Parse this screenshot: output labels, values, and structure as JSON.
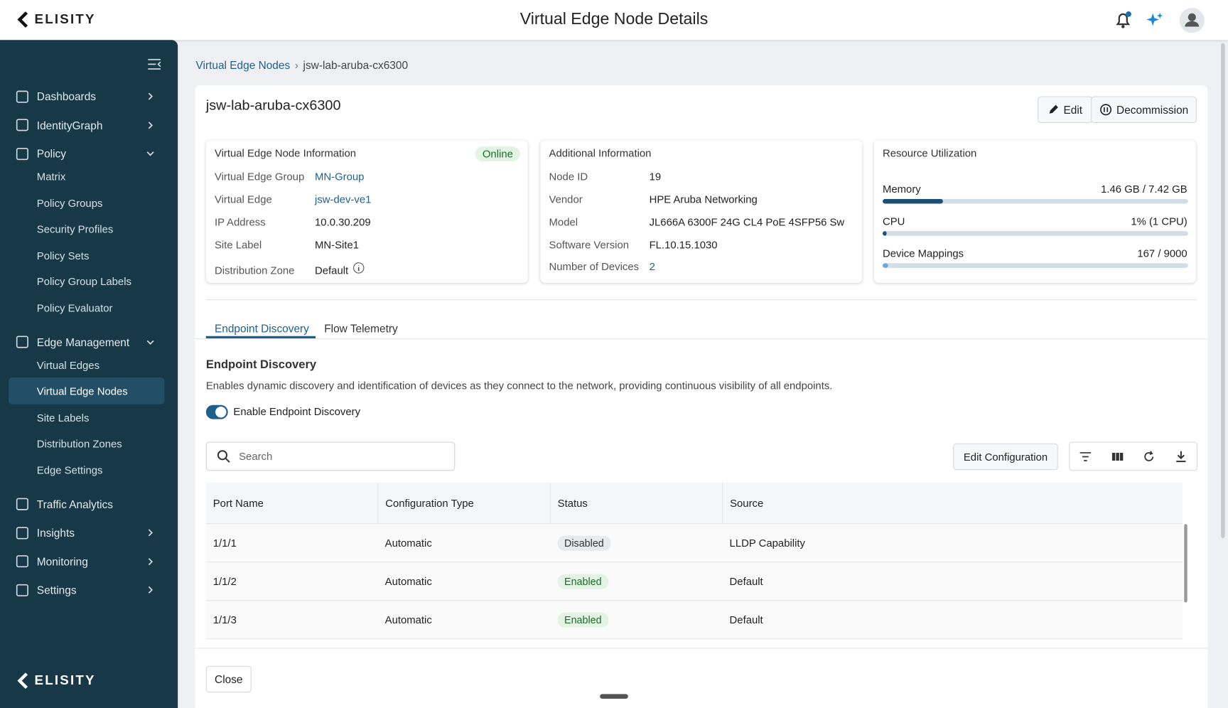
{
  "header": {
    "brand": "ELISITY",
    "title": "Virtual Edge Node Details"
  },
  "sidebar": {
    "items": [
      {
        "label": "Dashboards"
      },
      {
        "label": "IdentityGraph"
      },
      {
        "label": "Policy",
        "children": [
          "Matrix",
          "Policy Groups",
          "Security Profiles",
          "Policy Sets",
          "Policy Group Labels",
          "Policy Evaluator"
        ]
      },
      {
        "label": "Edge Management",
        "children": [
          "Virtual Edges",
          "Virtual Edge Nodes",
          "Site Labels",
          "Distribution Zones",
          "Edge Settings"
        ]
      },
      {
        "label": "Traffic Analytics"
      },
      {
        "label": "Insights"
      },
      {
        "label": "Monitoring"
      },
      {
        "label": "Settings"
      }
    ],
    "footer_brand": "ELISITY"
  },
  "breadcrumb": [
    "Virtual Edge Nodes",
    "jsw-lab-aruba-cx6300"
  ],
  "node": {
    "name": "jsw-lab-aruba-cx6300",
    "actions": [
      "Edit",
      "Decommission"
    ]
  },
  "info_card": {
    "title": "Virtual Edge Node Information",
    "status": "Online",
    "fields": [
      [
        "Virtual Edge Group",
        "MN-Group"
      ],
      [
        "Virtual Edge",
        "jsw-dev-ve1"
      ],
      [
        "IP Address",
        "10.0.30.209"
      ],
      [
        "Site Label",
        "MN-Site1"
      ],
      [
        "Distribution Zone",
        "Default"
      ]
    ]
  },
  "additional_card": {
    "title": "Additional Information",
    "fields": [
      [
        "Node ID",
        "19"
      ],
      [
        "Vendor",
        "HPE Aruba Networking"
      ],
      [
        "Model",
        "JL666A 6300F 24G CL4 PoE 4SFP56 Sw"
      ],
      [
        "Software Version",
        "FL.10.15.1030"
      ],
      [
        "Number of Devices",
        "2"
      ]
    ]
  },
  "resource_card": {
    "title": "Resource Utilization",
    "items": [
      {
        "name": "Memory",
        "label": "1.46 GB / 7.42 GB",
        "used": 1.46,
        "total": 7.42
      },
      {
        "name": "CPU",
        "label": "1% (1 CPU)",
        "used": 1,
        "total": 100
      },
      {
        "name": "Device Mappings",
        "label": "167 / 9000",
        "used": 167,
        "total": 9000
      }
    ]
  },
  "tabs": [
    "Endpoint Discovery",
    "Flow Telemetry"
  ],
  "section": {
    "title": "Endpoint Discovery",
    "description": "Enables dynamic discovery and identification of devices as they connect to the network, providing continuous visibility of all endpoints.",
    "toggle": "Enable Endpoint Discovery",
    "search_placeholder": "Search",
    "edit_button": "Edit Configuration"
  },
  "table": {
    "columns": [
      "Port Name",
      "Configuration Type",
      "Status",
      "Source"
    ],
    "rows": [
      [
        "1/1/1",
        "Automatic",
        "Disabled",
        "LLDP Capability"
      ],
      [
        "1/1/2",
        "Automatic",
        "Enabled",
        "Default"
      ],
      [
        "1/1/3",
        "Automatic",
        "Enabled",
        "Default"
      ]
    ]
  },
  "footer": {
    "close": "Close"
  }
}
